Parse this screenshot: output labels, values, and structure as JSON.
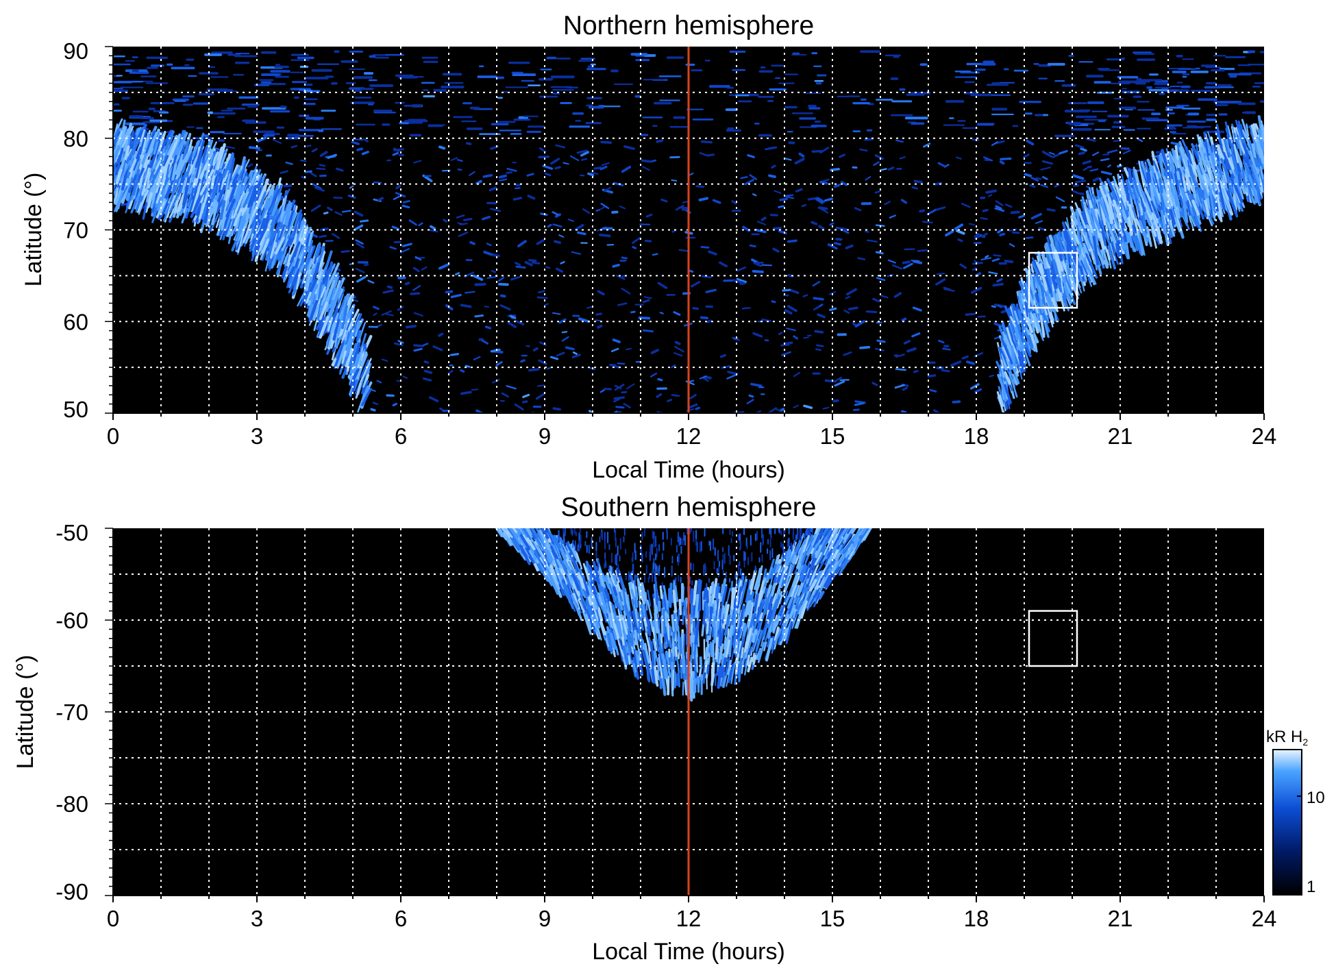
{
  "chart_data": [
    {
      "type": "heatmap",
      "title": "Northern hemisphere",
      "xlabel": "Local Time (hours)",
      "ylabel": "Latitude (°)",
      "xlim": [
        0,
        24
      ],
      "ylim": [
        50,
        90
      ],
      "x_ticks": [
        "0",
        "3",
        "6",
        "9",
        "12",
        "15",
        "18",
        "21",
        "24"
      ],
      "y_ticks": [
        "50",
        "60",
        "70",
        "80",
        "90"
      ],
      "grid": true,
      "grid_x_step_hours": 1,
      "grid_y_step_deg": 5,
      "marker_line_local_time": 12,
      "marker_line_color": "#d9431e",
      "box": {
        "lt_range": [
          19.1,
          20.1
        ],
        "lat_range": [
          61.5,
          67.5
        ]
      },
      "auroral_oval": {
        "dawn_side": [
          {
            "lt": 0.0,
            "lat": 73
          },
          {
            "lt": 2.0,
            "lat": 71
          },
          {
            "lt": 3.5,
            "lat": 66
          },
          {
            "lt": 4.5,
            "lat": 58
          },
          {
            "lt": 5.3,
            "lat": 50
          }
        ],
        "dusk_side": [
          {
            "lt": 18.5,
            "lat": 50
          },
          {
            "lt": 19.2,
            "lat": 58
          },
          {
            "lt": 20.5,
            "lat": 66
          },
          {
            "lt": 22.5,
            "lat": 71
          },
          {
            "lt": 24.0,
            "lat": 74
          }
        ]
      }
    },
    {
      "type": "heatmap",
      "title": "Southern hemisphere",
      "xlabel": "Local Time (hours)",
      "ylabel": "Latitude (°)",
      "xlim": [
        0,
        24
      ],
      "ylim": [
        -90,
        -50
      ],
      "x_ticks": [
        "0",
        "3",
        "6",
        "9",
        "12",
        "15",
        "18",
        "21",
        "24"
      ],
      "y_ticks": [
        "-50",
        "-60",
        "-70",
        "-80",
        "-90"
      ],
      "grid": true,
      "grid_x_step_hours": 1,
      "grid_y_step_deg": 5,
      "marker_line_local_time": 12,
      "marker_line_color": "#d9431e",
      "box": {
        "lt_range": [
          19.1,
          20.1
        ],
        "lat_range": [
          -65,
          -59
        ]
      },
      "auroral_oval": {
        "lt_range": [
          8.0,
          15.8
        ],
        "outer_edge": [
          {
            "lt": 8.0,
            "lat": -50
          },
          {
            "lt": 9.0,
            "lat": -55
          },
          {
            "lt": 10.0,
            "lat": -61
          },
          {
            "lt": 11.0,
            "lat": -66
          },
          {
            "lt": 12.0,
            "lat": -68
          },
          {
            "lt": 13.0,
            "lat": -66
          },
          {
            "lt": 14.0,
            "lat": -62
          },
          {
            "lt": 15.0,
            "lat": -56
          },
          {
            "lt": 15.8,
            "lat": -50
          }
        ],
        "inner_edge": [
          {
            "lt": 9.0,
            "lat": -50
          },
          {
            "lt": 10.0,
            "lat": -54
          },
          {
            "lt": 11.0,
            "lat": -56
          },
          {
            "lt": 12.0,
            "lat": -57
          },
          {
            "lt": 13.0,
            "lat": -56
          },
          {
            "lt": 14.0,
            "lat": -53
          },
          {
            "lt": 14.6,
            "lat": -50
          }
        ]
      }
    }
  ],
  "colorbar": {
    "label_kr": "kR H",
    "label_sub": "2",
    "ticks": [
      "10",
      "1"
    ],
    "scale": "log",
    "range": [
      1,
      30
    ],
    "colors": [
      "#000000",
      "#001a66",
      "#0d4fd6",
      "#4aa3ff",
      "#e8f4ff"
    ]
  }
}
